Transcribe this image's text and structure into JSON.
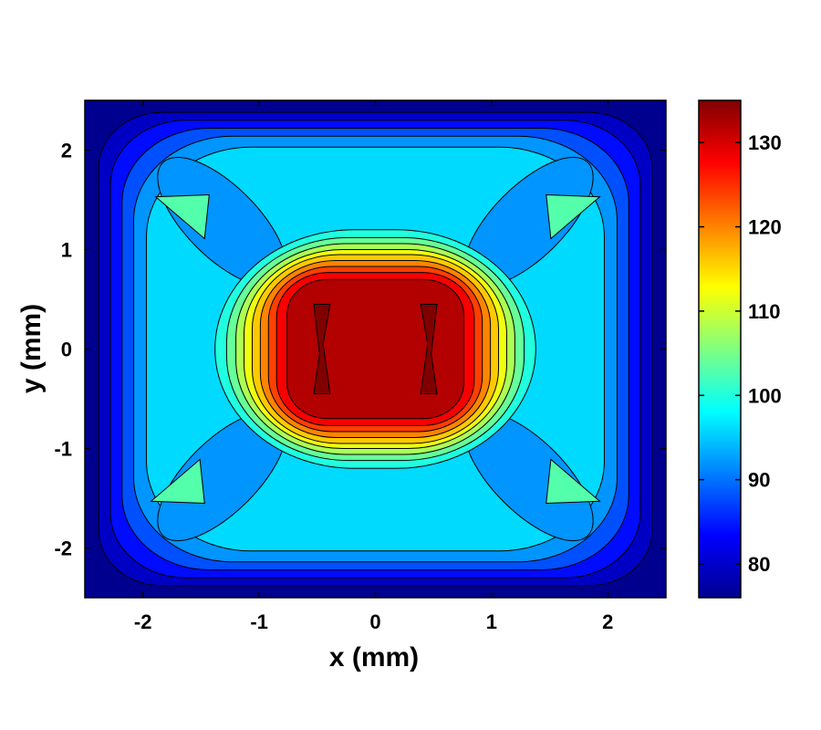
{
  "chart_data": {
    "type": "heatmap",
    "subtype": "filled-contour",
    "xlabel": "x (mm)",
    "ylabel": "y (mm)",
    "xlim": [
      -2.5,
      2.5
    ],
    "ylim": [
      -2.5,
      2.5
    ],
    "x_ticks": [
      {
        "value": -2,
        "label": "-2"
      },
      {
        "value": -1,
        "label": "-1"
      },
      {
        "value": 0,
        "label": "0"
      },
      {
        "value": 1,
        "label": "1"
      },
      {
        "value": 2,
        "label": "2"
      }
    ],
    "y_ticks": [
      {
        "value": 2,
        "label": "2"
      },
      {
        "value": 1,
        "label": "1"
      },
      {
        "value": 0,
        "label": "0"
      },
      {
        "value": -1,
        "label": "-1"
      },
      {
        "value": -2,
        "label": "-2"
      }
    ],
    "colorbar": {
      "range": [
        76,
        135
      ],
      "colormap": "jet",
      "ticks": [
        {
          "value": 130,
          "label": "130"
        },
        {
          "value": 120,
          "label": "120"
        },
        {
          "value": 110,
          "label": "110"
        },
        {
          "value": 100,
          "label": "100"
        },
        {
          "value": 90,
          "label": "90"
        },
        {
          "value": 80,
          "label": "80"
        }
      ]
    },
    "field": {
      "description_values": "Level at corners about 77, rising to about 98 in the band, peak about 135 in the central square",
      "center_peak": 135,
      "edge_min": 77
    }
  }
}
